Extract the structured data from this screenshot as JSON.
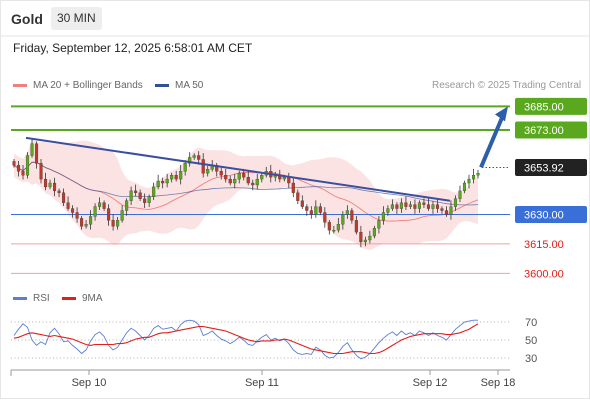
{
  "header": {
    "title": "Gold",
    "period": "30 MIN",
    "timestamp": "Friday, September 12, 2025 6:58:01 AM CET"
  },
  "legend": {
    "bollinger": "MA 20 + Bollinger Bands",
    "ma50": "MA 50",
    "rsi": "RSI",
    "rsi_ma": "9MA",
    "credit": "Research © 2025 Trading Central"
  },
  "colors": {
    "resistance": "#5aa81e",
    "pivot": "#3a6fd8",
    "support": "#f2a0a0",
    "trendline": "#3a4fa0",
    "arrow": "#2d5fa8",
    "bollinger_fill": "#fbd9d9",
    "ma20": "#f08080",
    "ma50": "#334f95",
    "rsi": "#5b7fd6",
    "rsi_ma": "#e0201b",
    "bull": "#5aa81e",
    "bear": "#c0392b"
  },
  "chart_data": {
    "type": "candlestick",
    "instrument": "Gold",
    "interval": "30 MIN",
    "x_ticks": [
      "Sep 10",
      "Sep 11",
      "Sep 12",
      "Sep 18"
    ],
    "ylim": [
      3592,
      3692
    ],
    "levels": [
      {
        "label": "3685.00",
        "value": 3685.0,
        "role": "resistance"
      },
      {
        "label": "3673.00",
        "value": 3673.0,
        "role": "resistance"
      },
      {
        "label": "3653.92",
        "value": 3653.92,
        "role": "last"
      },
      {
        "label": "3630.00",
        "value": 3630.0,
        "role": "pivot"
      },
      {
        "label": "3615.00",
        "value": 3615.0,
        "role": "support"
      },
      {
        "label": "3600.00",
        "value": 3600.0,
        "role": "support"
      }
    ],
    "trendline": [
      {
        "x": "Sep 9 19:00",
        "y": 3669
      },
      {
        "x": "Sep 12 07:00",
        "y": 3637
      }
    ],
    "forecast_arrow": [
      {
        "x": "Sep 12 07:00",
        "y": 3654
      },
      {
        "x": "Sep 12 14:00",
        "y": 3685
      }
    ],
    "price_close": [
      3655,
      3652,
      3650,
      3660,
      3666,
      3656,
      3648,
      3644,
      3646,
      3642,
      3641,
      3636,
      3633,
      3631,
      3628,
      3624,
      3625,
      3629,
      3634,
      3636,
      3633,
      3627,
      3624,
      3627,
      3632,
      3637,
      3642,
      3641,
      3638,
      3636,
      3639,
      3644,
      3647,
      3646,
      3648,
      3650,
      3648,
      3652,
      3656,
      3659,
      3660,
      3658,
      3651,
      3653,
      3655,
      3652,
      3650,
      3648,
      3646,
      3648,
      3651,
      3649,
      3646,
      3645,
      3648,
      3650,
      3652,
      3649,
      3650,
      3648,
      3649,
      3646,
      3641,
      3637,
      3634,
      3632,
      3630,
      3634,
      3631,
      3626,
      3622,
      3622,
      3625,
      3630,
      3632,
      3627,
      3621,
      3616,
      3617,
      3619,
      3623,
      3627,
      3631,
      3633,
      3635,
      3633,
      3636,
      3634,
      3635,
      3633,
      3636,
      3635,
      3633,
      3635,
      3633,
      3632,
      3630,
      3634,
      3638,
      3642,
      3646,
      3648,
      3650,
      3651
    ],
    "rsi": {
      "ylim": [
        20,
        80
      ],
      "ticks": [
        "70",
        "50",
        "30"
      ],
      "rsi_values": [
        55,
        62,
        68,
        64,
        50,
        44,
        48,
        45,
        58,
        63,
        57,
        48,
        49,
        44,
        40,
        35,
        39,
        49,
        56,
        59,
        54,
        44,
        39,
        42,
        50,
        58,
        63,
        60,
        55,
        50,
        55,
        63,
        66,
        62,
        63,
        64,
        60,
        67,
        71,
        72,
        71,
        67,
        55,
        57,
        60,
        55,
        51,
        49,
        46,
        49,
        53,
        50,
        45,
        44,
        49,
        53,
        56,
        50,
        52,
        49,
        51,
        46,
        39,
        35,
        34,
        35,
        34,
        42,
        39,
        33,
        30,
        31,
        36,
        43,
        47,
        39,
        33,
        29,
        31,
        35,
        41,
        47,
        52,
        56,
        59,
        55,
        60,
        56,
        58,
        55,
        60,
        58,
        55,
        58,
        55,
        53,
        50,
        56,
        62,
        66,
        70,
        71,
        72,
        72
      ],
      "ma9_values": [
        52,
        53,
        55,
        57,
        58,
        57,
        56,
        55,
        54,
        55,
        54,
        53,
        52,
        51,
        49,
        47,
        45,
        44,
        45,
        45,
        45,
        45,
        45,
        46,
        46,
        47,
        49,
        51,
        52,
        53,
        53,
        55,
        57,
        58,
        58,
        59,
        60,
        61,
        62,
        63,
        64,
        65,
        65,
        64,
        63,
        62,
        61,
        60,
        58,
        56,
        54,
        52,
        50,
        49,
        48,
        49,
        49,
        49,
        50,
        50,
        51,
        50,
        48,
        46,
        44,
        42,
        40,
        39,
        38,
        37,
        36,
        35,
        35,
        35,
        36,
        37,
        37,
        37,
        36,
        35,
        35,
        36,
        38,
        41,
        44,
        47,
        50,
        52,
        54,
        55,
        56,
        57,
        57,
        57,
        57,
        57,
        56,
        56,
        57,
        58,
        60,
        62,
        65,
        68
      ]
    }
  }
}
